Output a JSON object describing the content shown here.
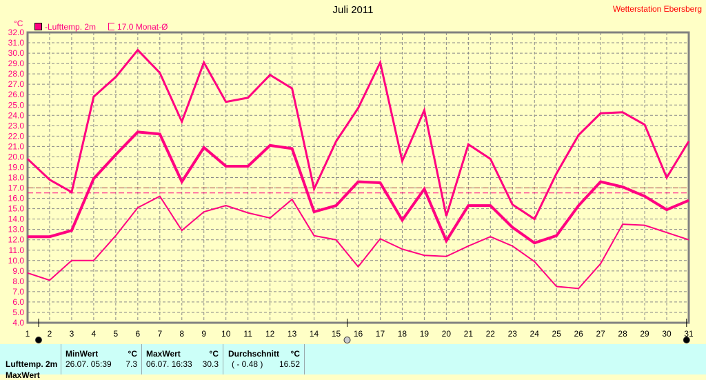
{
  "title": "Juli 2011",
  "station": "Wetterstation Ebersberg",
  "unit": "°C",
  "legend": {
    "series": "-Lufttemp. 2m",
    "average": "17.0 Monat-Ø"
  },
  "colors": {
    "series": "#FF0080",
    "background": "#FFFFC6",
    "table": "#CCFFF8",
    "avg_line": "#C00040"
  },
  "chart_data": {
    "type": "line",
    "title": "Juli 2011",
    "ylabel": "°C",
    "ylim": [
      4,
      32
    ],
    "yticks": [
      "4.0",
      "5.0",
      "6.0",
      "7.0",
      "8.0",
      "9.0",
      "10.0",
      "11.0",
      "12.0",
      "13.0",
      "14.0",
      "15.0",
      "16.0",
      "17.0",
      "18.0",
      "19.0",
      "20.0",
      "21.0",
      "22.0",
      "23.0",
      "24.0",
      "25.0",
      "26.0",
      "27.0",
      "28.0",
      "29.0",
      "30.0",
      "31.0",
      "32.0"
    ],
    "x": [
      1,
      2,
      3,
      4,
      5,
      6,
      7,
      8,
      9,
      10,
      11,
      12,
      13,
      14,
      15,
      16,
      17,
      18,
      19,
      20,
      21,
      22,
      23,
      24,
      25,
      26,
      27,
      28,
      29,
      30,
      31
    ],
    "grid": true,
    "series": [
      {
        "values": [
          19.8,
          17.8,
          16.6,
          25.8,
          27.7,
          30.3,
          28.1,
          23.4,
          29.1,
          25.3,
          25.7,
          27.9,
          26.6,
          16.9,
          21.5,
          24.7,
          29.1,
          19.6,
          24.5,
          14.3,
          21.2,
          19.8,
          15.4,
          14.0,
          18.4,
          22.1,
          24.2,
          24.3,
          23.1,
          18.0,
          21.5
        ]
      },
      {
        "values": [
          12.3,
          12.3,
          12.9,
          17.9,
          20.2,
          22.4,
          22.2,
          17.6,
          20.9,
          19.1,
          19.1,
          21.1,
          20.8,
          14.7,
          15.3,
          17.6,
          17.5,
          13.9,
          16.9,
          11.9,
          15.3,
          15.3,
          13.2,
          11.7,
          12.4,
          15.3,
          17.6,
          17.1,
          16.2,
          14.9,
          15.8
        ]
      },
      {
        "values": [
          8.8,
          8.1,
          10.0,
          10.0,
          12.4,
          15.1,
          16.2,
          12.9,
          14.7,
          15.3,
          14.6,
          14.1,
          15.9,
          12.4,
          12.0,
          9.4,
          12.1,
          11.1,
          10.5,
          10.4,
          11.4,
          12.3,
          11.4,
          9.9,
          7.5,
          7.3,
          9.7,
          13.5,
          13.4,
          12.7,
          12.0
        ]
      }
    ],
    "reference_lines": [
      17.0,
      16.52
    ],
    "moon_phases": [
      {
        "day": 1.5,
        "phase": "new"
      },
      {
        "day": 15.5,
        "phase": "full"
      },
      {
        "day": 30.9,
        "phase": "new"
      }
    ]
  },
  "table": {
    "row_label": "Lufttemp. 2m",
    "row_label2": "MaxWert",
    "min": {
      "header": "MinWert",
      "unit": "°C",
      "date": "26.07.  05:39",
      "value": "7.3"
    },
    "max": {
      "header": "MaxWert",
      "unit": "°C",
      "date": "06.07.  16:33",
      "value": "30.3"
    },
    "avg": {
      "header": "Durchschnitt",
      "unit": "°C",
      "delta": "( - 0.48 )",
      "value": "16.52"
    }
  }
}
